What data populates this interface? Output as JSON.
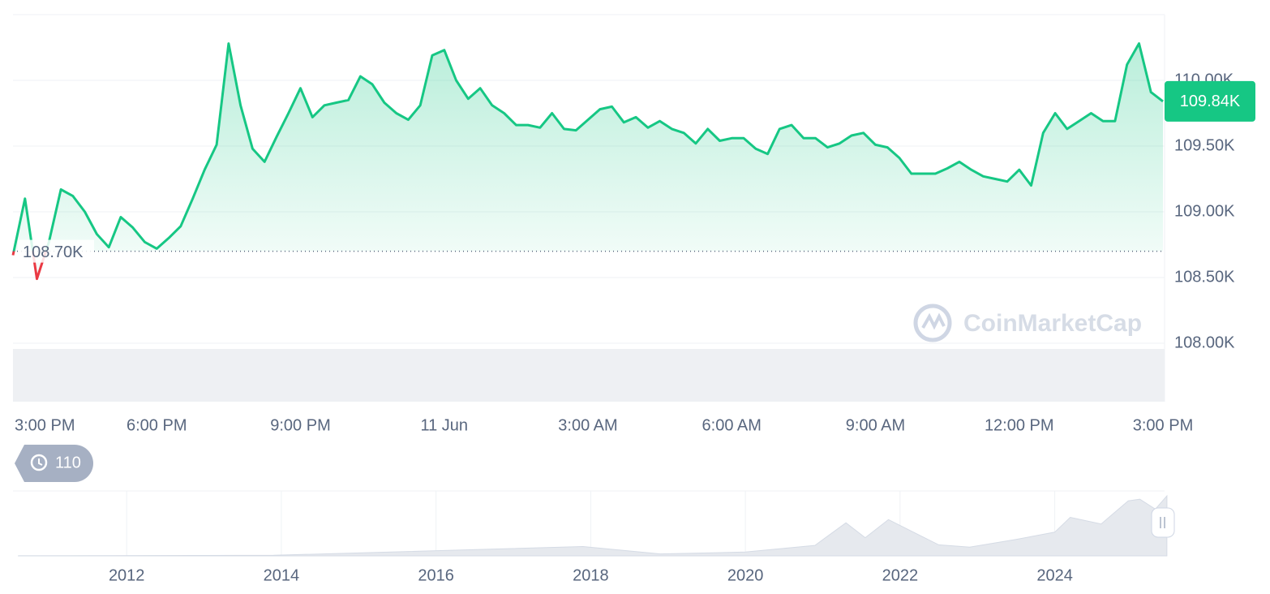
{
  "chart_data": [
    {
      "type": "line",
      "x": [
        0,
        0.25,
        0.5,
        0.75,
        1,
        1.25,
        1.5,
        1.75,
        2,
        2.25,
        2.5,
        2.75,
        3,
        3.25,
        3.5,
        3.75,
        4,
        4.25,
        4.5,
        4.75,
        5,
        5.25,
        5.5,
        5.75,
        6,
        6.25,
        6.5,
        6.75,
        7,
        7.25,
        7.5,
        7.75,
        8,
        8.25,
        8.5,
        8.75,
        9,
        9.25,
        9.5,
        9.75,
        10,
        10.25,
        10.5,
        10.75,
        11,
        11.25,
        11.5,
        11.75,
        12,
        12.25,
        12.5,
        12.75,
        13,
        13.25,
        13.5,
        13.75,
        14,
        14.25,
        14.5,
        14.75,
        15,
        15.25,
        15.5,
        15.75,
        16,
        16.25,
        16.5,
        16.75,
        17,
        17.25,
        17.5,
        17.75,
        18,
        18.25,
        18.5,
        18.75,
        19,
        19.25,
        19.5,
        19.75,
        20,
        20.25,
        20.5,
        20.75,
        21,
        21.25,
        21.5,
        21.75,
        22,
        22.25,
        22.5,
        22.75,
        23,
        23.25,
        23.5,
        23.75,
        24
      ],
      "series": [
        {
          "color": "#16c784",
          "color_below": "#ea3943",
          "values": [
            108.67,
            109.1,
            108.49,
            108.77,
            109.17,
            109.12,
            109.0,
            108.83,
            108.73,
            108.96,
            108.88,
            108.77,
            108.72,
            108.8,
            108.89,
            109.1,
            109.32,
            109.51,
            110.28,
            109.81,
            109.48,
            109.38,
            109.57,
            109.75,
            109.94,
            109.72,
            109.81,
            109.83,
            109.85,
            110.03,
            109.97,
            109.83,
            109.75,
            109.7,
            109.81,
            110.19,
            110.23,
            110.0,
            109.86,
            109.94,
            109.81,
            109.75,
            109.66,
            109.66,
            109.64,
            109.75,
            109.63,
            109.62,
            109.7,
            109.78,
            109.8,
            109.68,
            109.72,
            109.64,
            109.69,
            109.63,
            109.6,
            109.52,
            109.63,
            109.54,
            109.56,
            109.56,
            109.48,
            109.44,
            109.63,
            109.66,
            109.56,
            109.56,
            109.49,
            109.52,
            109.58,
            109.6,
            109.51,
            109.49,
            109.41,
            109.29,
            109.29,
            109.29,
            109.33,
            109.38,
            109.32,
            109.27,
            109.25,
            109.23,
            109.32,
            109.2,
            109.6,
            109.75,
            109.63,
            109.69,
            109.75,
            109.69,
            109.69,
            110.12,
            110.28,
            109.91,
            109.84
          ]
        }
      ],
      "xlim": [
        0,
        24
      ],
      "xticks": [
        {
          "value": 0,
          "label": "3:00 PM"
        },
        {
          "value": 3,
          "label": "6:00 PM"
        },
        {
          "value": 6,
          "label": "9:00 PM"
        },
        {
          "value": 9,
          "label": "11 Jun"
        },
        {
          "value": 12,
          "label": "3:00 AM"
        },
        {
          "value": 15,
          "label": "6:00 AM"
        },
        {
          "value": 18,
          "label": "9:00 AM"
        },
        {
          "value": 21,
          "label": "12:00 PM"
        },
        {
          "value": 24,
          "label": "3:00 PM"
        }
      ],
      "ylim": [
        108,
        110.5
      ],
      "yticks": [
        {
          "value": 108,
          "label": "108.00K"
        },
        {
          "value": 108.5,
          "label": "108.50K"
        },
        {
          "value": 109,
          "label": "109.00K"
        },
        {
          "value": 109.5,
          "label": "109.50K"
        },
        {
          "value": 110,
          "label": "110.00K"
        }
      ],
      "grid": true,
      "baseline": {
        "value": 108.7,
        "label": "108.70K"
      },
      "last_price": {
        "value": 109.84,
        "label": "109.84K"
      },
      "watermark": "CoinMarketCap"
    },
    {
      "type": "area",
      "x": [
        2010.6,
        2013.9,
        2017.9,
        2018.9,
        2020.0,
        2020.9,
        2021.3,
        2021.55,
        2021.85,
        2022.5,
        2022.9,
        2023.5,
        2024.0,
        2024.2,
        2024.6,
        2024.95,
        2025.1,
        2025.3,
        2025.45
      ],
      "series": [
        {
          "color": "#e6e9ee",
          "values": [
            0.1,
            1,
            17,
            3.5,
            7,
            19,
            60,
            33,
            66,
            20,
            16,
            30,
            43,
            70,
            58,
            100,
            103,
            85,
            109
          ]
        }
      ],
      "xlim": [
        2010.53,
        2025.42
      ],
      "xticks": [
        2012,
        2014,
        2016,
        2018,
        2020,
        2022,
        2024
      ],
      "ylim": [
        0,
        118
      ],
      "grid": true
    }
  ],
  "history_badge": "110"
}
